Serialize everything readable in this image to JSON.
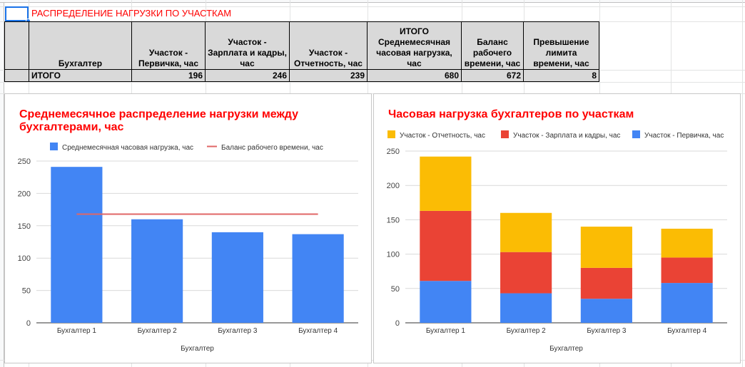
{
  "sheet": {
    "title": "РАСПРЕДЕЛЕНИЕ НАГРУЗКИ ПО УЧАСТКАМ"
  },
  "table": {
    "headers": [
      "",
      "Бухгалтер",
      "Участок - Первичка, час",
      "Участок - Зарплата и кадры, час",
      "Участок - Отчетность, час",
      "ИТОГО Среднемесячная часовая нагрузка, час",
      "Баланс рабочего времени, час",
      "Превышение лимита времени, час"
    ],
    "total_row": {
      "label": "ИТОГО",
      "values": [
        "196",
        "246",
        "239",
        "680",
        "672",
        "8"
      ]
    }
  },
  "colors": {
    "blue": "#4285f4",
    "red": "#ea4335",
    "yellow": "#fbbc04",
    "line_red": "#e06666",
    "title_red": "#ff0000"
  },
  "chart_data": [
    {
      "type": "bar",
      "title": "Среднемесячное распределение нагрузки между бухгалтерами, час",
      "xlabel": "Бухгалтер",
      "ylabel": "",
      "ylim": [
        0,
        250
      ],
      "yticks": [
        0,
        50,
        100,
        150,
        200,
        250
      ],
      "categories": [
        "Бухгалтер 1",
        "Бухгалтер 2",
        "Бухгалтер 3",
        "Бухгалтер 4"
      ],
      "series": [
        {
          "name": "Среднемесячная часовая нагрузка, час",
          "values": [
            241,
            160,
            140,
            137
          ],
          "color": "#4285f4",
          "kind": "bar"
        },
        {
          "name": "Баланс рабочего времени, час",
          "values": [
            168,
            168,
            168,
            168
          ],
          "color": "#e06666",
          "kind": "line"
        }
      ],
      "legend": "top",
      "grid": true
    },
    {
      "type": "bar",
      "stacked": true,
      "title": "Часовая нагрузка бухгалтеров по участкам",
      "xlabel": "Бухгалтер",
      "ylabel": "",
      "ylim": [
        0,
        250
      ],
      "yticks": [
        0,
        50,
        100,
        150,
        200,
        250
      ],
      "categories": [
        "Бухгалтер 1",
        "Бухгалтер 2",
        "Бухгалтер 3",
        "Бухгалтер 4"
      ],
      "series": [
        {
          "name": "Участок - Первичка, час",
          "values": [
            61,
            43,
            35,
            58
          ],
          "color": "#4285f4"
        },
        {
          "name": "Участок - Зарплата и кадры, час",
          "values": [
            102,
            60,
            45,
            37
          ],
          "color": "#ea4335"
        },
        {
          "name": "Участок - Отчетность, час",
          "values": [
            79,
            57,
            60,
            42
          ],
          "color": "#fbbc04"
        }
      ],
      "legend_order": [
        "Участок - Отчетность, час",
        "Участок - Зарплата и кадры, час",
        "Участок - Первичка, час"
      ],
      "legend": "top",
      "grid": true
    }
  ]
}
